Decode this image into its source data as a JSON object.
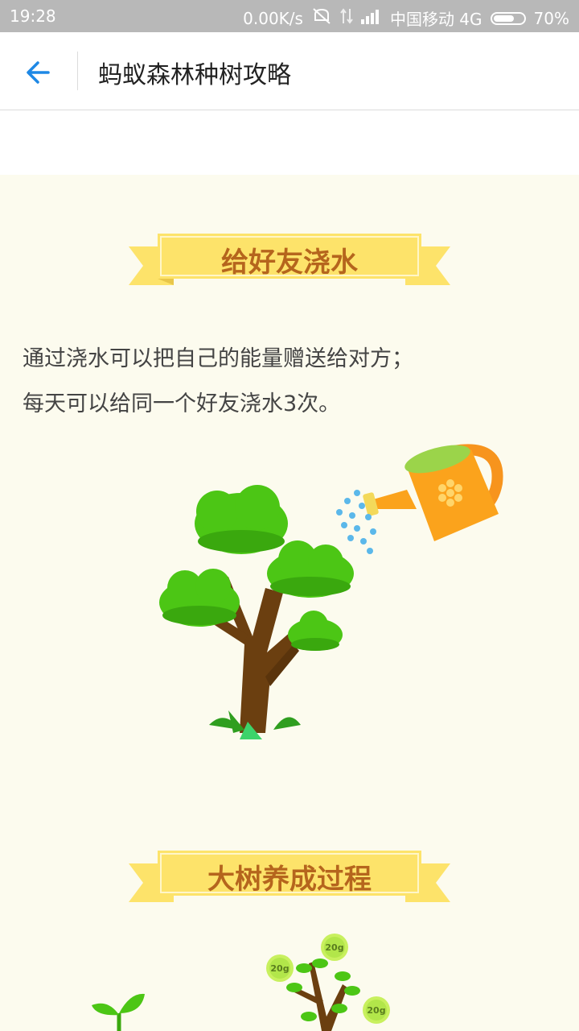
{
  "status_bar": {
    "time": "19:28",
    "network_speed": "0.00K/s",
    "carrier": "中国移动 4G",
    "battery": "70%",
    "battery_level": 0.7
  },
  "header": {
    "back_icon": "arrow-left-icon",
    "title": "蚂蚁森林种树攻略",
    "accent_color": "#1e88e5"
  },
  "section_water": {
    "heading": "给好友浇水",
    "lines": [
      "通过浇水可以把自己的能量赠送给对方；",
      "每天可以给同一个好友浇水3次。"
    ]
  },
  "section_grow": {
    "heading": "大树养成过程",
    "energy_badges": [
      "20g",
      "20g",
      "20g"
    ]
  },
  "colors": {
    "background": "#fcfbee",
    "ribbon": "#fde36a",
    "ribbon_text": "#b5651d",
    "tree_green": "#4cc615",
    "trunk": "#6b3f10",
    "can_orange": "#fba31c"
  }
}
